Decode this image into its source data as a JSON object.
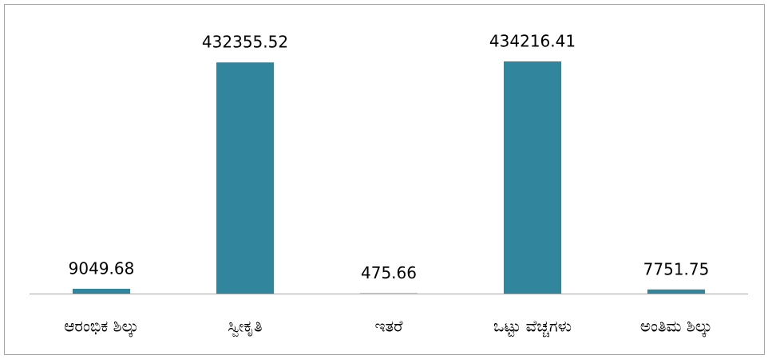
{
  "chart_data": {
    "type": "bar",
    "categories": [
      "ಆರಂಭಿಕ ಶಿಲ್ಕು",
      "ಸ್ವೀಕೃತಿ",
      "ಇತರೆ",
      "ಒಟ್ಟು ವೆಚ್ಚಗಳು",
      "ಅಂತಿಮ ಶಿಲ್ಕು"
    ],
    "values": [
      9049.68,
      432355.52,
      475.66,
      434216.41,
      7751.75
    ],
    "color": "#31859c"
  }
}
